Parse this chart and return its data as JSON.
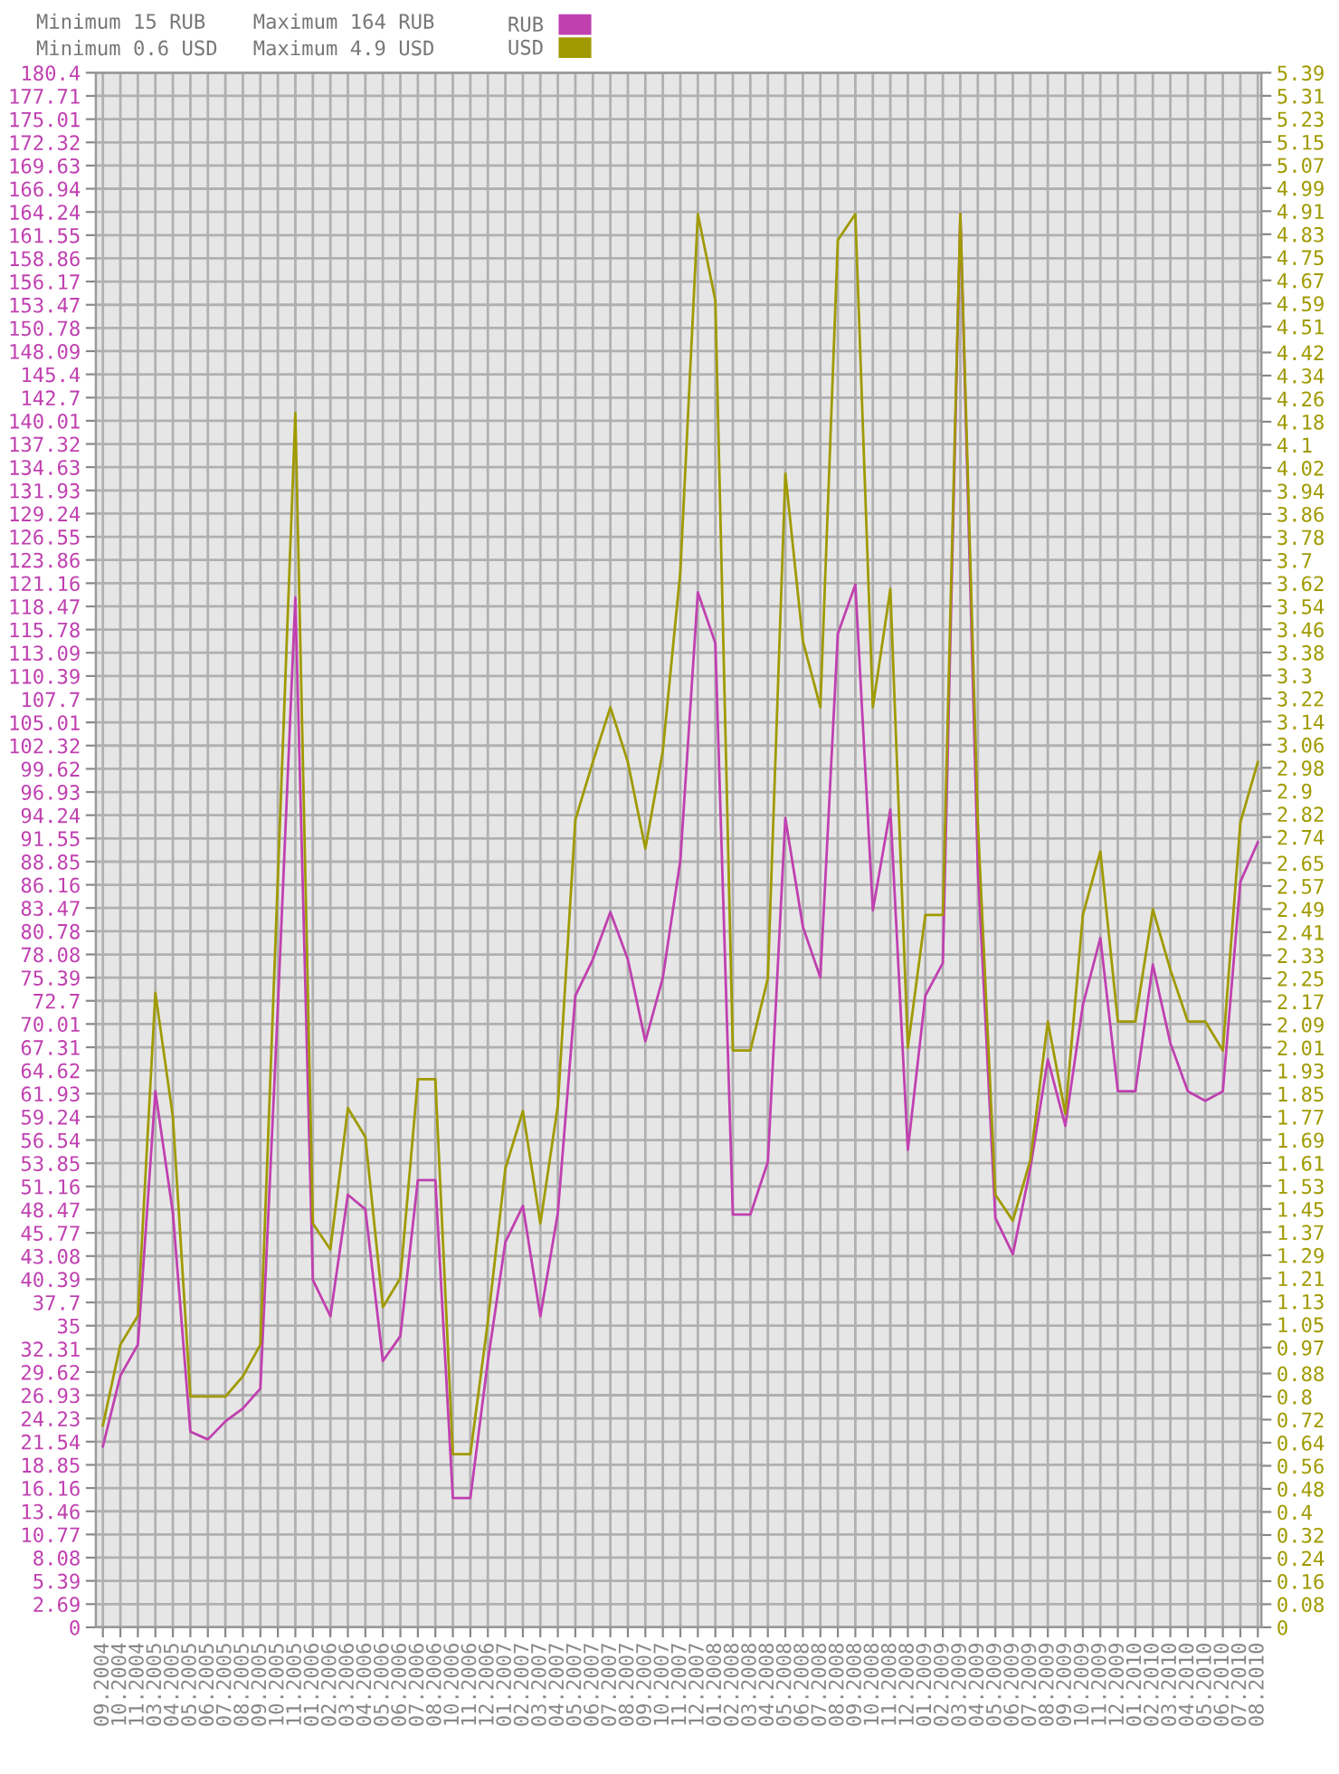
{
  "chart_data": {
    "type": "line",
    "annotations": [
      "Minimum 15 RUB",
      "Minimum 0.6 USD",
      "Maximum 164 RUB",
      "Maximum 4.9 USD"
    ],
    "categories": [
      "09.2004",
      "10.2004",
      "11.2004",
      "03.2005",
      "04.2005",
      "05.2005",
      "06.2005",
      "07.2005",
      "08.2005",
      "09.2005",
      "10.2005",
      "11.2005",
      "01.2006",
      "02.2006",
      "03.2006",
      "04.2006",
      "05.2006",
      "06.2006",
      "07.2006",
      "08.2006",
      "10.2006",
      "11.2006",
      "12.2006",
      "01.2007",
      "02.2007",
      "03.2007",
      "04.2007",
      "05.2007",
      "06.2007",
      "07.2007",
      "08.2007",
      "09.2007",
      "10.2007",
      "11.2007",
      "12.2007",
      "01.2008",
      "02.2008",
      "03.2008",
      "04.2008",
      "05.2008",
      "06.2008",
      "07.2008",
      "08.2008",
      "09.2008",
      "10.2008",
      "11.2008",
      "12.2008",
      "01.2009",
      "02.2009",
      "03.2009",
      "04.2009",
      "05.2009",
      "06.2009",
      "07.2009",
      "08.2009",
      "09.2009",
      "10.2009",
      "11.2009",
      "12.2009",
      "01.2010",
      "02.2010",
      "03.2010",
      "04.2010",
      "05.2010",
      "06.2010",
      "07.2010",
      "08.2010"
    ],
    "series": [
      {
        "name": "RUB",
        "color": "#c040b0",
        "values": [
          21.0,
          29.2,
          32.8,
          62.2,
          48.1,
          22.7,
          21.8,
          23.9,
          25.4,
          27.7,
          72,
          119.5,
          40.3,
          36.1,
          50.2,
          48.5,
          30.9,
          33.8,
          51.9,
          51.9,
          15,
          15,
          30.9,
          44.7,
          48.9,
          36.1,
          48.1,
          73.3,
          77.5,
          83.0,
          77.5,
          68.0,
          75.4,
          89.0,
          120.1,
          114.2,
          47.9,
          47.9,
          54.0,
          93.9,
          81.3,
          75.4,
          115.3,
          121.0,
          83.2,
          94.9,
          55.4,
          73.3,
          77.1,
          164,
          88.0,
          47.5,
          43.3,
          53.3,
          65.9,
          58.2,
          72.2,
          80.0,
          62.2,
          62.2,
          76.9,
          67.8,
          62.2,
          61.1,
          62.2,
          86.5,
          91.1
        ]
      },
      {
        "name": "USD",
        "color": "#a09a00",
        "axis": "y2",
        "values": [
          0.7,
          0.98,
          1.08,
          2.2,
          1.77,
          0.8,
          0.8,
          0.8,
          0.87,
          0.98,
          2.6,
          4.21,
          1.4,
          1.31,
          1.8,
          1.7,
          1.11,
          1.21,
          1.9,
          1.9,
          0.6,
          0.6,
          1.06,
          1.59,
          1.79,
          1.4,
          1.81,
          2.8,
          3.0,
          3.19,
          3.0,
          2.7,
          3.04,
          3.66,
          4.9,
          4.6,
          2.0,
          2.0,
          2.25,
          4.0,
          3.42,
          3.19,
          4.81,
          4.9,
          3.19,
          3.6,
          2.01,
          2.47,
          2.47,
          4.9,
          2.79,
          1.5,
          1.41,
          1.62,
          2.1,
          1.78,
          2.47,
          2.69,
          2.1,
          2.1,
          2.49,
          2.28,
          2.1,
          2.1,
          2.0,
          2.79,
          3.0
        ]
      }
    ],
    "ylim": [
      0,
      180.4
    ],
    "yticks": [
      0,
      2.69,
      5.39,
      8.08,
      10.77,
      13.46,
      16.16,
      18.85,
      21.54,
      24.23,
      26.93,
      29.62,
      32.31,
      35,
      37.7,
      40.39,
      43.08,
      45.77,
      48.47,
      51.16,
      53.85,
      56.54,
      59.24,
      61.93,
      64.62,
      67.31,
      70.01,
      72.7,
      75.39,
      78.08,
      80.78,
      83.47,
      86.16,
      88.85,
      91.55,
      94.24,
      96.93,
      99.62,
      102.32,
      105.01,
      107.7,
      110.39,
      113.09,
      115.78,
      118.47,
      121.16,
      123.86,
      126.55,
      129.24,
      131.93,
      134.63,
      137.32,
      140.01,
      142.7,
      145.4,
      148.09,
      150.78,
      153.47,
      156.17,
      158.86,
      161.55,
      164.24,
      166.94,
      169.63,
      172.32,
      175.01,
      177.71,
      180.4
    ],
    "y2lim": [
      0,
      5.39
    ],
    "y2ticks": [
      0,
      0.08,
      0.16,
      0.24,
      0.32,
      0.4,
      0.48,
      0.56,
      0.64,
      0.72,
      0.8,
      0.88,
      0.97,
      1.05,
      1.13,
      1.21,
      1.29,
      1.37,
      1.45,
      1.53,
      1.61,
      1.69,
      1.77,
      1.85,
      1.93,
      2.01,
      2.09,
      2.17,
      2.25,
      2.33,
      2.41,
      2.49,
      2.57,
      2.65,
      2.74,
      2.82,
      2.9,
      2.98,
      3.06,
      3.14,
      3.22,
      3.3,
      3.38,
      3.46,
      3.54,
      3.62,
      3.7,
      3.78,
      3.86,
      3.94,
      4.02,
      4.1,
      4.18,
      4.26,
      4.34,
      4.42,
      4.51,
      4.59,
      4.67,
      4.75,
      4.83,
      4.91,
      4.99,
      5.07,
      5.15,
      5.23,
      5.31,
      5.39
    ],
    "grid": true,
    "legend": "top",
    "marker": "none",
    "line_style": "solid"
  }
}
